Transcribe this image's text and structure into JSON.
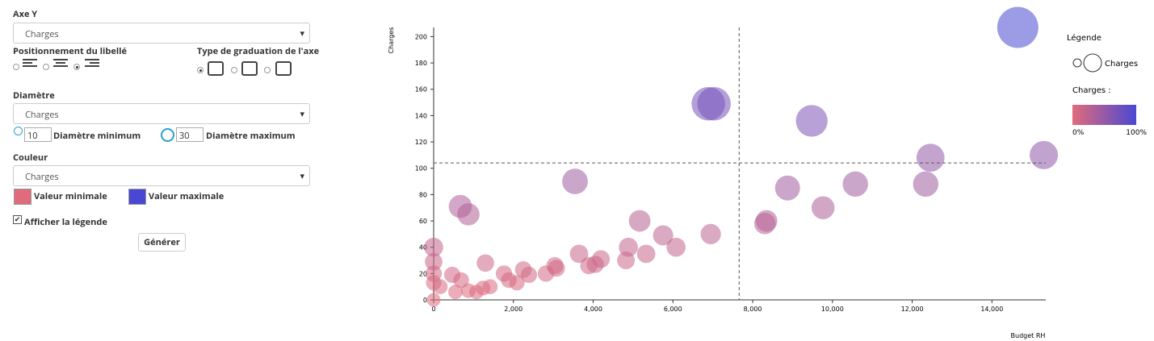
{
  "form": {
    "y_axis": {
      "label": "Axe Y",
      "value": "Charges"
    },
    "label_position": "Positionnement du libellé",
    "axis_scale_type": "Type de graduation de l'axe",
    "diameter": {
      "label": "Diamètre",
      "value": "Charges",
      "min": 10,
      "min_label": "Diamètre minimum",
      "max": 30,
      "max_label": "Diamètre maximum"
    },
    "color": {
      "label": "Couleur",
      "value": "Charges",
      "min_label": "Valeur minimale",
      "max_label": "Valeur maximale"
    },
    "show_legend": "Afficher la légende",
    "generate": "Générer"
  },
  "chart_data": {
    "type": "bubble",
    "x_label": "Budget RH",
    "y_label": "Charges",
    "x": [
      14648,
      6888,
      7030,
      9481,
      15300,
      12459,
      12338,
      10575,
      8874,
      9765,
      8347,
      8306,
      3545,
      669,
      871,
      5166,
      5754,
      6949,
      6078,
      4883,
      5328,
      3646,
      4822,
      4194,
      4052,
      3890,
      3039,
      3079,
      2816,
      2249,
      2390,
      2087,
      1763,
      1297,
      1418,
      1236,
      871,
      466,
      689,
      547,
      162,
      0,
      0,
      0,
      0,
      0,
      1074,
      1884
    ],
    "values": [
      207,
      149,
      149,
      136,
      110,
      108,
      88,
      88,
      85,
      70,
      60,
      58,
      90,
      71,
      65,
      60,
      49,
      50,
      40,
      40,
      35,
      35,
      30,
      31,
      27,
      26,
      26,
      24,
      20,
      23,
      19,
      13,
      20,
      28,
      10,
      9,
      7,
      19,
      15,
      6,
      10,
      40,
      29,
      20,
      13,
      0,
      6,
      15
    ],
    "xlim": [
      0,
      15350
    ],
    "ylim": [
      0,
      207
    ],
    "xticks": [
      0,
      {
        "value": 2000,
        "label": "2,000"
      },
      {
        "value": 4000,
        "label": "4,000"
      },
      {
        "value": 6000,
        "label": "6,000"
      },
      {
        "value": 8000,
        "label": "8,000"
      },
      {
        "value": 10000,
        "label": "10,000"
      },
      {
        "value": 12000,
        "label": "12,000"
      },
      {
        "value": 14000,
        "label": "14,000"
      }
    ],
    "yticks": [
      0,
      20,
      40,
      60,
      80,
      100,
      120,
      140,
      160,
      180,
      200
    ],
    "reference_lines": {
      "x": 7660,
      "y": 104
    },
    "color_min": "#e06b7b",
    "color_max": "#4a48d2",
    "legend": {
      "title": "Légende",
      "size_label": "Charges",
      "color_title": "Charges :",
      "color_min_label": "0%",
      "color_max_label": "100%"
    }
  }
}
